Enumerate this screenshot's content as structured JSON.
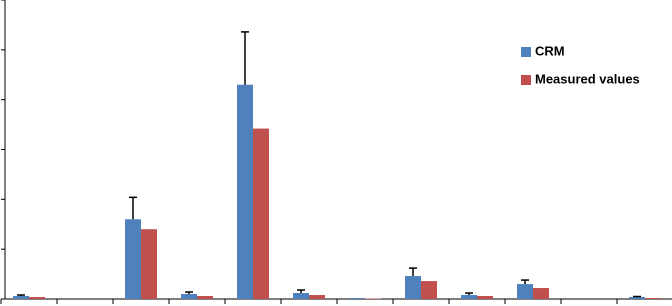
{
  "chart_data": {
    "type": "bar",
    "categories": [
      null,
      null,
      null,
      null,
      null,
      null,
      null,
      null,
      null,
      null,
      null,
      null
    ],
    "series": [
      {
        "name": "CRM",
        "color": "#4f81bd",
        "values": [
          0.06,
          0,
          1.6,
          0.1,
          4.3,
          0.12,
          0.02,
          0.46,
          0.08,
          0.3,
          0,
          0.04
        ],
        "errors": [
          0.02,
          0,
          0.44,
          0.04,
          1.06,
          0.06,
          0,
          0.16,
          0.04,
          0.08,
          0,
          0.01
        ]
      },
      {
        "name": "Measured values",
        "color": "#c0504d",
        "values": [
          0.04,
          0,
          1.4,
          0.06,
          3.42,
          0.08,
          0.01,
          0.36,
          0.06,
          0.22,
          0,
          0.02
        ]
      }
    ],
    "ylim": [
      0,
      6
    ],
    "yticks": [
      0,
      1,
      2,
      3,
      4,
      5,
      6
    ],
    "legend": "top-right"
  }
}
